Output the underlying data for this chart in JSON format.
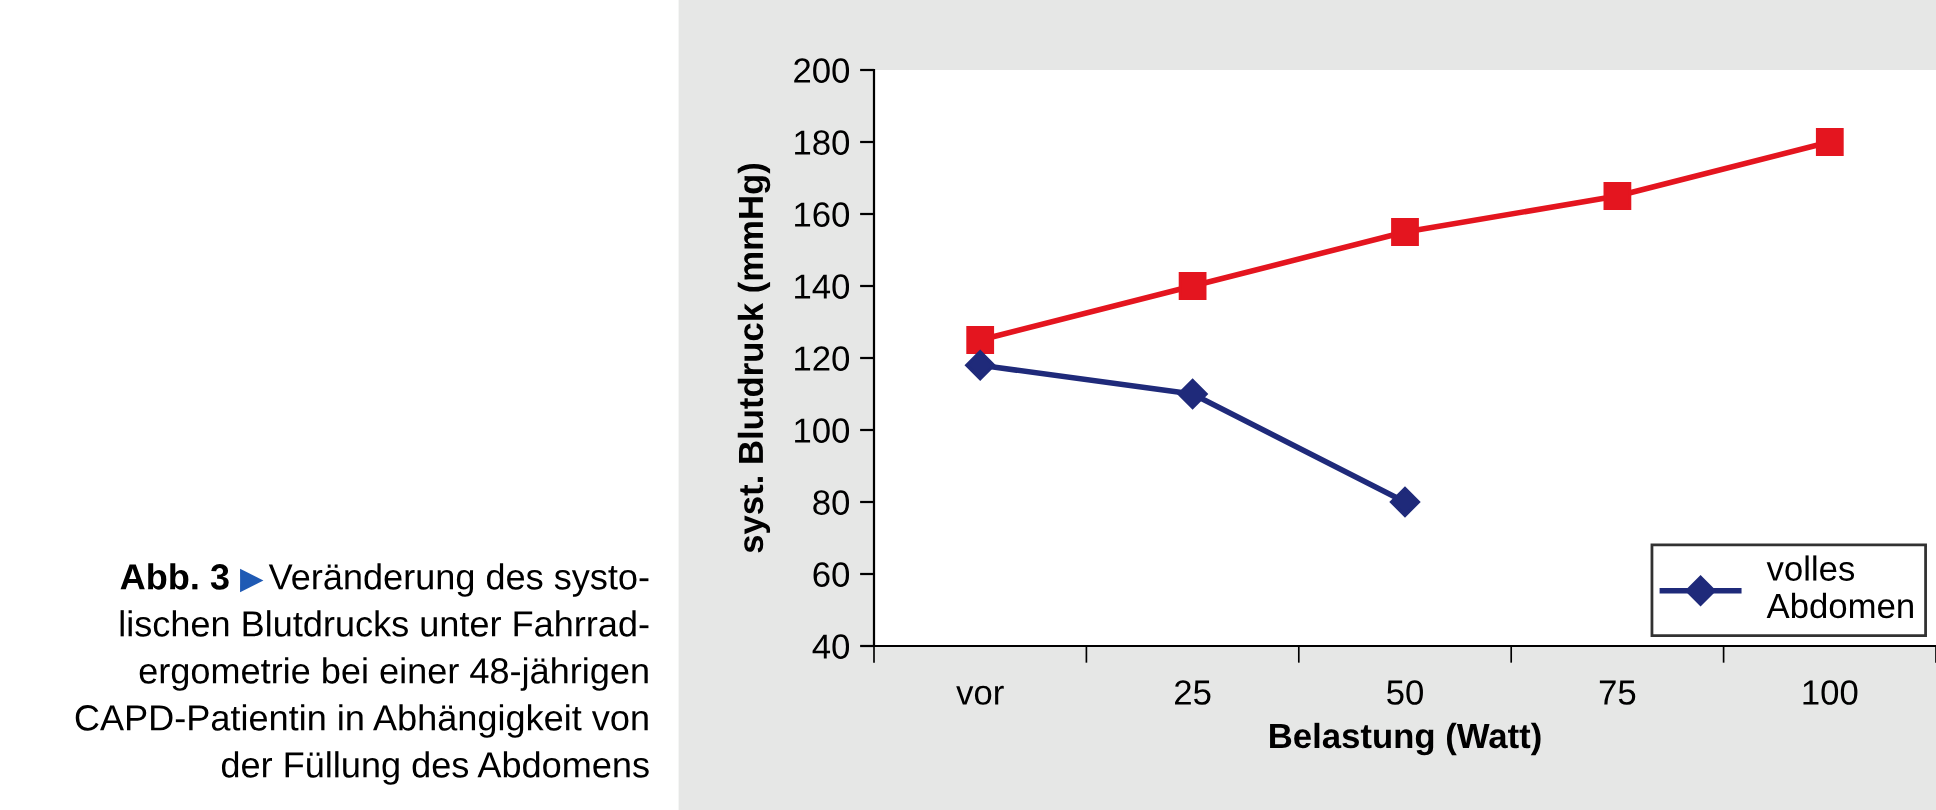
{
  "chart_data": {
    "type": "line",
    "xlabel": "Belastung (Watt)",
    "ylabel": "syst. Blutdruck (mmHg)",
    "categories": [
      "vor",
      "25",
      "50",
      "75",
      "100"
    ],
    "series": [
      {
        "color": "#e4151f",
        "marker": "square",
        "values": [
          125,
          140,
          155,
          165,
          180
        ]
      },
      {
        "name": "volles\nAbdomen",
        "color": "#1f2a7a",
        "marker": "diamond",
        "values": [
          118,
          110,
          80,
          null,
          null
        ]
      }
    ],
    "ylim": [
      40,
      200
    ],
    "yticks": [
      40,
      60,
      80,
      100,
      120,
      140,
      160,
      180,
      200
    ],
    "grid": false,
    "legend": "bottom right",
    "line_style": "solid",
    "annotations": [
      "Abb. 3",
      "▶",
      "Veränderung des systo-\nlischen Blutdrucks unter Fahrrad-\nergometrie bei einer 48-jährigen\nCAPD-Patientin in Abhängigkeit von\nder Füllung des Abdomens"
    ]
  }
}
